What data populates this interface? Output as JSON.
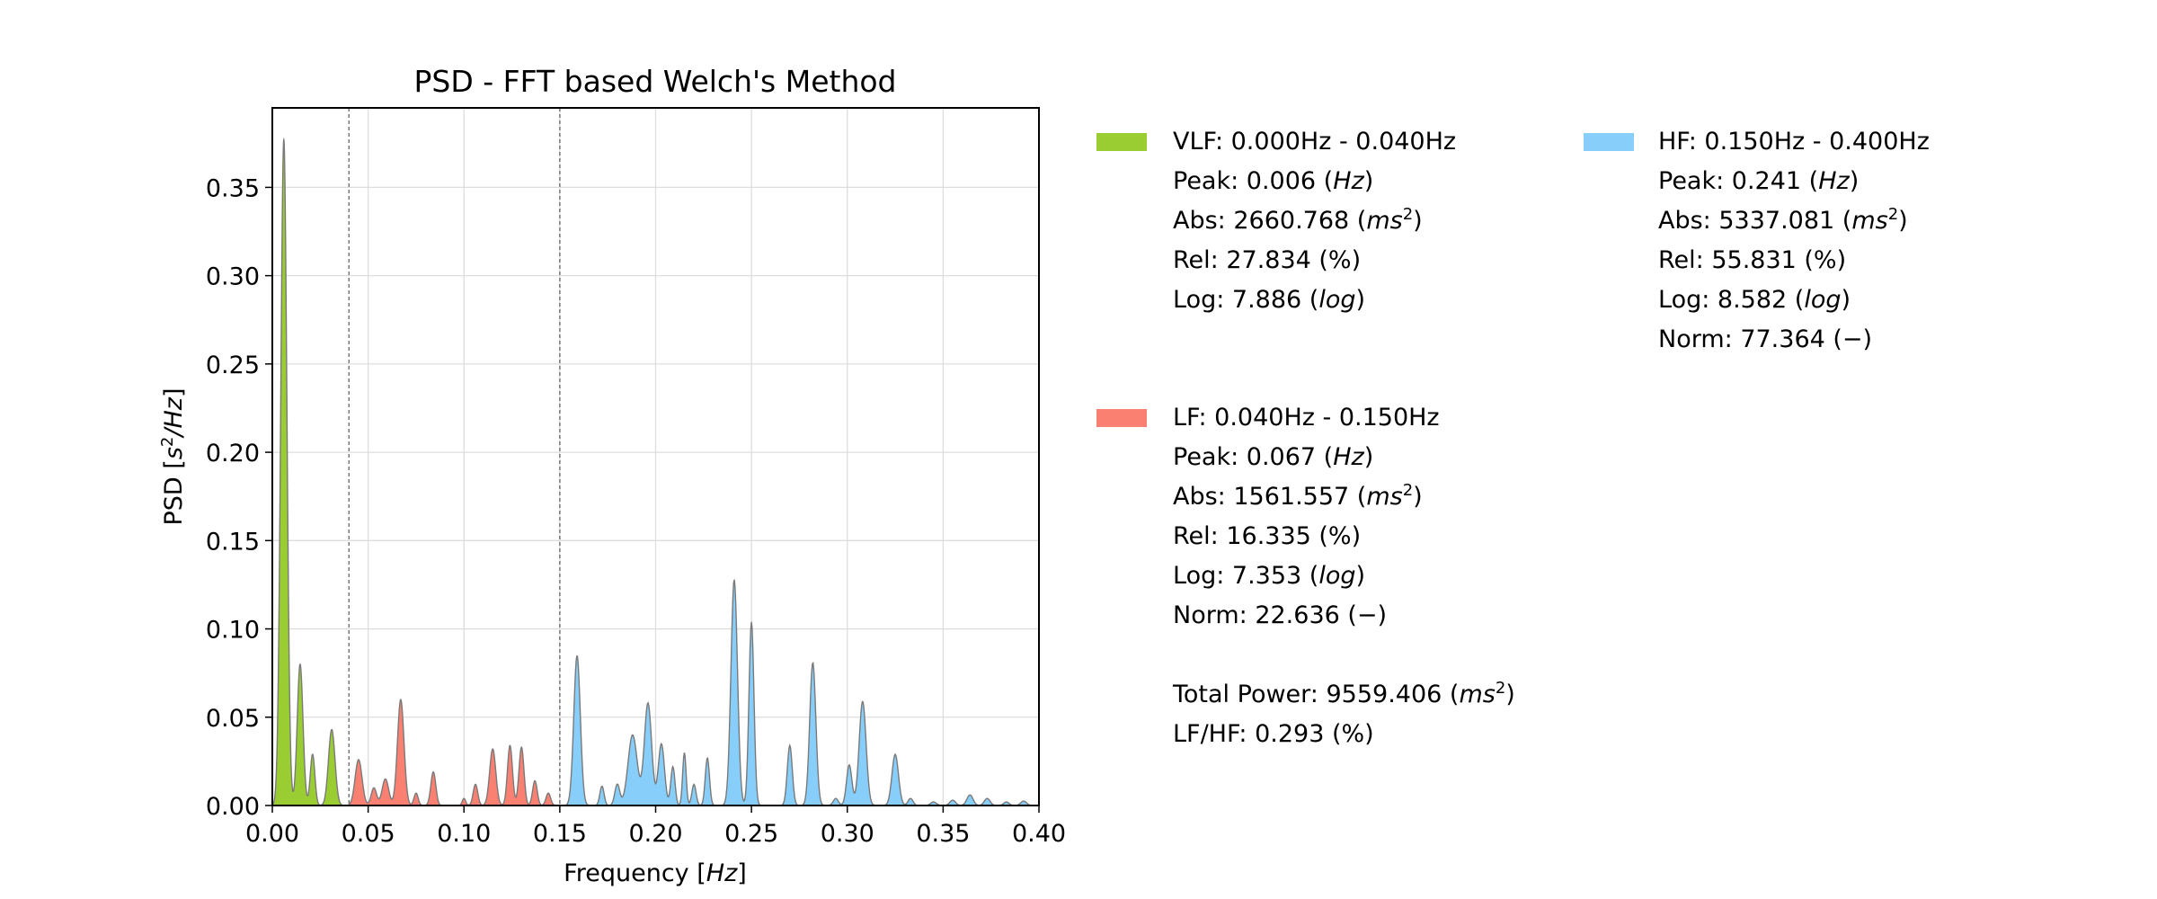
{
  "chart_data": {
    "type": "area",
    "title": "PSD - FFT based Welch's Method",
    "xlabel": "Frequency",
    "xlabel_unit": "Hz",
    "ylabel": "PSD",
    "ylabel_unit": "s2/Hz",
    "xlim": [
      0.0,
      0.4
    ],
    "ylim": [
      0.0,
      0.395
    ],
    "xticks": [
      "0.00",
      "0.05",
      "0.10",
      "0.15",
      "0.20",
      "0.25",
      "0.30",
      "0.35",
      "0.40"
    ],
    "yticks": [
      "0.00",
      "0.05",
      "0.10",
      "0.15",
      "0.20",
      "0.25",
      "0.30",
      "0.35"
    ],
    "grid": true,
    "band_edges": [
      0.04,
      0.15
    ],
    "bands": [
      {
        "name": "VLF",
        "range": [
          0.0,
          0.04
        ],
        "color": "#9acd32"
      },
      {
        "name": "LF",
        "range": [
          0.04,
          0.15
        ],
        "color": "#fa8072"
      },
      {
        "name": "HF",
        "range": [
          0.15,
          0.4
        ],
        "color": "#87cefa"
      }
    ],
    "peaks": [
      [
        0.006,
        0.377,
        0.0016
      ],
      [
        0.0145,
        0.08,
        0.0015
      ],
      [
        0.021,
        0.029,
        0.0012
      ],
      [
        0.031,
        0.043,
        0.0017
      ],
      [
        0.045,
        0.026,
        0.0018
      ],
      [
        0.053,
        0.01,
        0.0014
      ],
      [
        0.059,
        0.015,
        0.0017
      ],
      [
        0.067,
        0.06,
        0.0017
      ],
      [
        0.075,
        0.007,
        0.0011
      ],
      [
        0.084,
        0.019,
        0.0013
      ],
      [
        0.1,
        0.004,
        0.0009
      ],
      [
        0.106,
        0.012,
        0.0012
      ],
      [
        0.115,
        0.032,
        0.0016
      ],
      [
        0.124,
        0.034,
        0.0013
      ],
      [
        0.13,
        0.033,
        0.0013
      ],
      [
        0.137,
        0.014,
        0.0012
      ],
      [
        0.144,
        0.007,
        0.0012
      ],
      [
        0.159,
        0.085,
        0.0017
      ],
      [
        0.172,
        0.011,
        0.0011
      ],
      [
        0.18,
        0.012,
        0.0013
      ],
      [
        0.188,
        0.04,
        0.0024
      ],
      [
        0.196,
        0.058,
        0.0019
      ],
      [
        0.203,
        0.035,
        0.0016
      ],
      [
        0.209,
        0.022,
        0.0011
      ],
      [
        0.215,
        0.03,
        0.0009
      ],
      [
        0.22,
        0.012,
        0.0011
      ],
      [
        0.227,
        0.027,
        0.0011
      ],
      [
        0.241,
        0.128,
        0.0017
      ],
      [
        0.25,
        0.104,
        0.0013
      ],
      [
        0.27,
        0.034,
        0.0013
      ],
      [
        0.282,
        0.081,
        0.0016
      ],
      [
        0.294,
        0.004,
        0.0013
      ],
      [
        0.301,
        0.023,
        0.0014
      ],
      [
        0.308,
        0.059,
        0.0018
      ],
      [
        0.325,
        0.029,
        0.0017
      ],
      [
        0.333,
        0.004,
        0.0013
      ],
      [
        0.345,
        0.002,
        0.0015
      ],
      [
        0.355,
        0.003,
        0.0015
      ],
      [
        0.364,
        0.006,
        0.0016
      ],
      [
        0.373,
        0.004,
        0.0015
      ],
      [
        0.383,
        0.002,
        0.0014
      ],
      [
        0.392,
        0.0025,
        0.0015
      ]
    ]
  },
  "legend": {
    "vlf": {
      "title": "VLF: 0.000Hz - 0.040Hz",
      "peak": "Peak: 0.006",
      "peak_unit": "Hz",
      "abs": "Abs:  2660.768",
      "abs_unit": "ms",
      "rel": "Rel:  27.834 (%)",
      "log": "Log:  7.886",
      "log_unit": "log"
    },
    "lf": {
      "title": "LF: 0.040Hz - 0.150Hz",
      "peak": "Peak: 0.067",
      "peak_unit": "Hz",
      "abs": "Abs:  1561.557",
      "abs_unit": "ms",
      "rel": "Rel:  16.335 (%)",
      "log": "Log:  7.353",
      "log_unit": "log",
      "norm": "Norm: 22.636 (−)"
    },
    "hf": {
      "title": "HF: 0.150Hz - 0.400Hz",
      "peak": "Peak: 0.241",
      "peak_unit": "Hz",
      "abs": "Abs:  5337.081",
      "abs_unit": "ms",
      "rel": "Rel:  55.831 (%)",
      "log": "Log:  8.582",
      "log_unit": "log",
      "norm": "Norm: 77.364 (−)"
    },
    "total": "Total Power: 9559.406",
    "total_unit": "ms",
    "lfhf": "LF/HF: 0.293 (%)"
  }
}
